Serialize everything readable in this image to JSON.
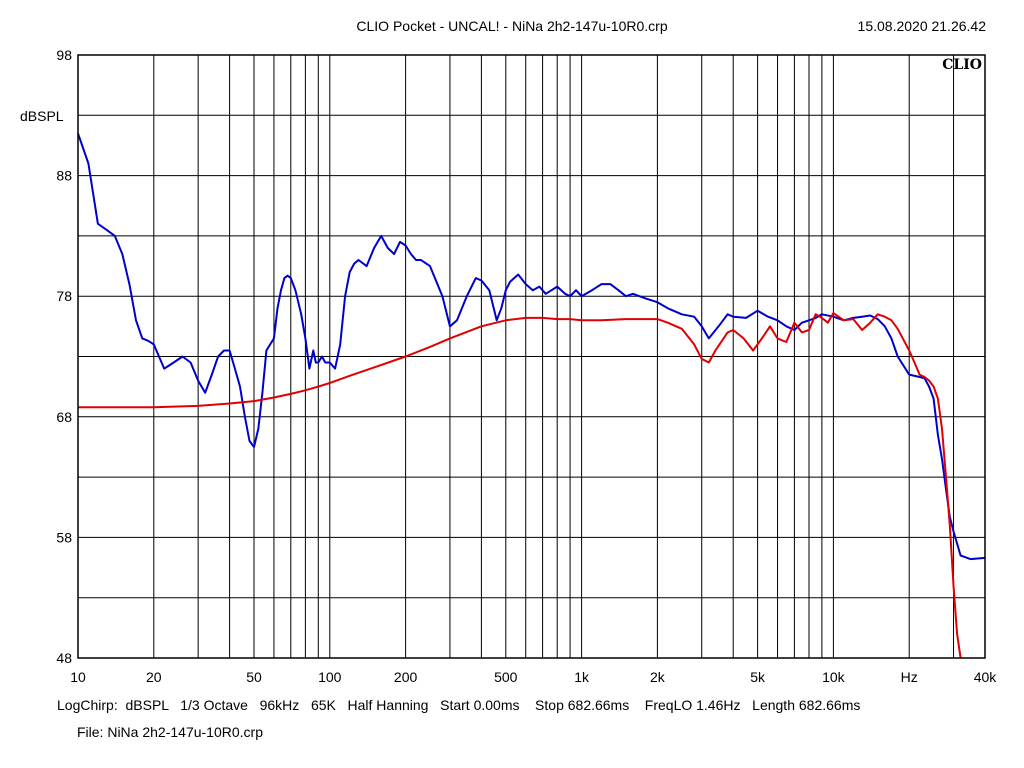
{
  "header": {
    "title": "CLIO Pocket - UNCAL! - NiNa 2h2-147u-10R0.crp",
    "timestamp": "15.08.2020 21.26.42"
  },
  "footer": {
    "params": "LogChirp:  dBSPL   1/3 Octave   96kHz   65K   Half Hanning   Start 0.00ms    Stop 682.66ms    FreqLO 1.46Hz   Length 682.66ms",
    "file": "File: NiNa 2h2-147u-10R0.crp"
  },
  "logo": "CLIO",
  "chart_data": {
    "type": "line",
    "xscale": "log",
    "xlim": [
      10,
      40000
    ],
    "ylim": [
      48,
      98
    ],
    "ylabel": "dBSPL",
    "y_ticks": [
      "98",
      "88",
      "78",
      "68",
      "58",
      "48"
    ],
    "x_tick_labels": [
      {
        "v": 10,
        "t": "10"
      },
      {
        "v": 20,
        "t": "20"
      },
      {
        "v": 50,
        "t": "50"
      },
      {
        "v": 100,
        "t": "100"
      },
      {
        "v": 200,
        "t": "200"
      },
      {
        "v": 500,
        "t": "500"
      },
      {
        "v": 1000,
        "t": "1k"
      },
      {
        "v": 2000,
        "t": "2k"
      },
      {
        "v": 5000,
        "t": "5k"
      },
      {
        "v": 10000,
        "t": "10k"
      },
      {
        "v": 20000,
        "t": "Hz"
      },
      {
        "v": 40000,
        "t": "40k"
      }
    ],
    "grid": true,
    "series": [
      {
        "color": "#0000cc",
        "x": [
          10,
          11,
          12,
          13,
          14,
          15,
          16,
          17,
          18,
          19,
          20,
          22,
          24,
          26,
          28,
          30,
          32,
          34,
          36,
          38,
          40,
          42,
          44,
          46,
          48,
          50,
          52,
          54,
          56,
          58,
          60,
          62,
          64,
          66,
          68,
          70,
          73,
          77,
          80,
          83,
          86,
          88,
          90,
          93,
          96,
          100,
          105,
          110,
          115,
          120,
          125,
          130,
          140,
          150,
          160,
          170,
          180,
          190,
          200,
          210,
          220,
          230,
          250,
          280,
          300,
          320,
          350,
          380,
          400,
          430,
          460,
          480,
          500,
          520,
          560,
          600,
          640,
          680,
          720,
          760,
          800,
          860,
          900,
          950,
          1000,
          1100,
          1200,
          1300,
          1400,
          1500,
          1600,
          1800,
          2000,
          2200,
          2500,
          2800,
          3000,
          3200,
          3500,
          3800,
          4000,
          4500,
          5000,
          5500,
          6000,
          6500,
          7000,
          7500,
          8000,
          8500,
          9000,
          10000,
          11000,
          12000,
          13000,
          14000,
          15000,
          16000,
          17000,
          18000,
          20000,
          22000,
          23000,
          24000,
          25000,
          26000,
          27000,
          28000,
          29000,
          30000,
          32000,
          35000,
          40000
        ],
        "y": [
          91.5,
          89,
          84,
          83.5,
          83,
          81.5,
          79,
          76,
          74.5,
          74.3,
          74,
          72,
          72.5,
          73,
          72.5,
          71,
          70,
          71.5,
          73,
          73.5,
          73.5,
          72,
          70.5,
          68,
          66,
          65.5,
          67,
          70,
          73.5,
          74,
          74.5,
          77,
          78.5,
          79.5,
          79.7,
          79.5,
          78.5,
          76.5,
          74.5,
          72,
          73.5,
          72.5,
          72.5,
          73,
          72.5,
          72.5,
          72,
          74,
          78,
          80,
          80.7,
          81,
          80.5,
          82,
          83,
          82,
          81.5,
          82.5,
          82.2,
          81.5,
          81,
          81,
          80.5,
          78,
          75.5,
          76,
          78,
          79.5,
          79.3,
          78.5,
          76,
          77,
          78.5,
          79.2,
          79.8,
          79,
          78.5,
          78.8,
          78.2,
          78.5,
          78.8,
          78.2,
          78,
          78.5,
          78,
          78.5,
          79,
          79,
          78.5,
          78,
          78.2,
          77.8,
          77.5,
          77,
          76.5,
          76.3,
          75.5,
          74.5,
          75.5,
          76.5,
          76.3,
          76.2,
          76.8,
          76.3,
          76,
          75.5,
          75.2,
          75.8,
          76,
          76.2,
          76.5,
          76.3,
          76,
          76.2,
          76.3,
          76.4,
          76.1,
          75.5,
          74.5,
          73,
          71.5,
          71.3,
          71.2,
          70.5,
          69.5,
          66.5,
          64.5,
          62,
          59.7,
          58.5,
          56.5,
          56.2,
          56.3
        ]
      },
      {
        "color": "#e00000",
        "x": [
          10,
          20,
          30,
          40,
          50,
          60,
          70,
          80,
          90,
          100,
          120,
          150,
          200,
          250,
          300,
          400,
          500,
          600,
          700,
          800,
          900,
          1000,
          1200,
          1500,
          2000,
          2200,
          2500,
          2800,
          3000,
          3200,
          3400,
          3800,
          4000,
          4400,
          4800,
          5200,
          5600,
          6000,
          6500,
          7000,
          7500,
          8000,
          8500,
          9000,
          9500,
          10000,
          11000,
          12000,
          13000,
          14000,
          15000,
          16000,
          17000,
          18000,
          20000,
          21000,
          22000,
          23000,
          24000,
          25000,
          26000,
          27000,
          28000,
          29000,
          30000,
          31000,
          32000
        ],
        "y": [
          68.8,
          68.8,
          68.9,
          69.1,
          69.3,
          69.6,
          69.9,
          70.2,
          70.5,
          70.8,
          71.4,
          72.1,
          73,
          73.8,
          74.5,
          75.5,
          76,
          76.2,
          76.2,
          76.1,
          76.1,
          76,
          76,
          76.1,
          76.1,
          75.8,
          75.3,
          74,
          72.8,
          72.5,
          73.5,
          75,
          75.2,
          74.5,
          73.5,
          74.5,
          75.5,
          74.5,
          74.2,
          75.8,
          75,
          75.2,
          76.5,
          76.2,
          75.8,
          76.6,
          76,
          76.1,
          75.2,
          75.8,
          76.5,
          76.3,
          76,
          75.3,
          73.5,
          72.5,
          71.5,
          71.3,
          71,
          70.5,
          69.5,
          67,
          63,
          59,
          54,
          50,
          47
        ]
      }
    ]
  }
}
